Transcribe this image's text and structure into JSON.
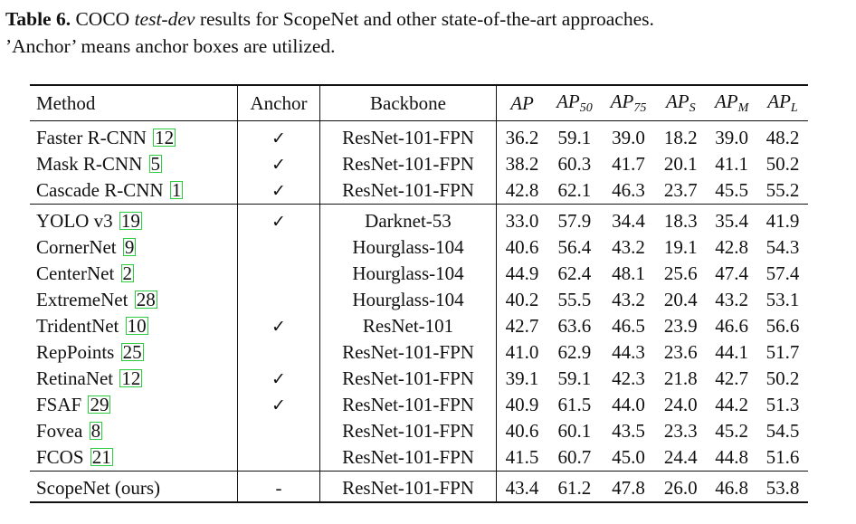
{
  "caption": {
    "label": "Table 6.",
    "pre": " COCO ",
    "italic": "test-dev",
    "post": " results for ScopeNet and other state-of-the-art approaches.",
    "line2": "’Anchor’ means anchor boxes are utilized."
  },
  "headers": {
    "method": "Method",
    "anchor": "Anchor",
    "backbone": "Backbone",
    "ap": "AP",
    "ap50_sub": "50",
    "ap75_sub": "75",
    "aps_sub": "S",
    "apm_sub": "M",
    "apl_sub": "L"
  },
  "groups": [
    [
      {
        "method": "Faster R-CNN",
        "ref": "12",
        "anchor": "✓",
        "backbone": "ResNet-101-FPN",
        "ap": "36.2",
        "ap50": "59.1",
        "ap75": "39.0",
        "aps": "18.2",
        "apm": "39.0",
        "apl": "48.2"
      },
      {
        "method": "Mask R-CNN",
        "ref": "5",
        "anchor": "✓",
        "backbone": "ResNet-101-FPN",
        "ap": "38.2",
        "ap50": "60.3",
        "ap75": "41.7",
        "aps": "20.1",
        "apm": "41.1",
        "apl": "50.2"
      },
      {
        "method": "Cascade R-CNN",
        "ref": "1",
        "anchor": "✓",
        "backbone": "ResNet-101-FPN",
        "ap": "42.8",
        "ap50": "62.1",
        "ap75": "46.3",
        "aps": "23.7",
        "apm": "45.5",
        "apl": "55.2"
      }
    ],
    [
      {
        "method": "YOLO v3",
        "ref": "19",
        "anchor": "✓",
        "backbone": "Darknet-53",
        "ap": "33.0",
        "ap50": "57.9",
        "ap75": "34.4",
        "aps": "18.3",
        "apm": "35.4",
        "apl": "41.9"
      },
      {
        "method": "CornerNet",
        "ref": "9",
        "anchor": "",
        "backbone": "Hourglass-104",
        "ap": "40.6",
        "ap50": "56.4",
        "ap75": "43.2",
        "aps": "19.1",
        "apm": "42.8",
        "apl": "54.3"
      },
      {
        "method": "CenterNet",
        "ref": "2",
        "anchor": "",
        "backbone": "Hourglass-104",
        "ap": "44.9",
        "ap50": "62.4",
        "ap75": "48.1",
        "aps": "25.6",
        "apm": "47.4",
        "apl": "57.4"
      },
      {
        "method": "ExtremeNet",
        "ref": "28",
        "anchor": "",
        "backbone": "Hourglass-104",
        "ap": "40.2",
        "ap50": "55.5",
        "ap75": "43.2",
        "aps": "20.4",
        "apm": "43.2",
        "apl": "53.1"
      },
      {
        "method": "TridentNet",
        "ref": "10",
        "anchor": "✓",
        "backbone": "ResNet-101",
        "ap": "42.7",
        "ap50": "63.6",
        "ap75": "46.5",
        "aps": "23.9",
        "apm": "46.6",
        "apl": "56.6"
      },
      {
        "method": "RepPoints",
        "ref": "25",
        "anchor": "",
        "backbone": "ResNet-101-FPN",
        "ap": "41.0",
        "ap50": "62.9",
        "ap75": "44.3",
        "aps": "23.6",
        "apm": "44.1",
        "apl": "51.7"
      },
      {
        "method": "RetinaNet",
        "ref": "12",
        "anchor": "✓",
        "backbone": "ResNet-101-FPN",
        "ap": "39.1",
        "ap50": "59.1",
        "ap75": "42.3",
        "aps": "21.8",
        "apm": "42.7",
        "apl": "50.2"
      },
      {
        "method": "FSAF",
        "ref": "29",
        "anchor": "✓",
        "backbone": "ResNet-101-FPN",
        "ap": "40.9",
        "ap50": "61.5",
        "ap75": "44.0",
        "aps": "24.0",
        "apm": "44.2",
        "apl": "51.3"
      },
      {
        "method": "Fovea",
        "ref": "8",
        "anchor": "",
        "backbone": "ResNet-101-FPN",
        "ap": "40.6",
        "ap50": "60.1",
        "ap75": "43.5",
        "aps": "23.3",
        "apm": "45.2",
        "apl": "54.5"
      },
      {
        "method": "FCOS",
        "ref": "21",
        "anchor": "",
        "backbone": "ResNet-101-FPN",
        "ap": "41.5",
        "ap50": "60.7",
        "ap75": "45.0",
        "aps": "24.4",
        "apm": "44.8",
        "apl": "51.6"
      }
    ],
    [
      {
        "method": "ScopeNet (ours)",
        "ref": "",
        "anchor": "-",
        "backbone": "ResNet-101-FPN",
        "ap": "43.4",
        "ap50": "61.2",
        "ap75": "47.8",
        "aps": "26.0",
        "apm": "46.8",
        "apl": "53.8"
      }
    ]
  ]
}
